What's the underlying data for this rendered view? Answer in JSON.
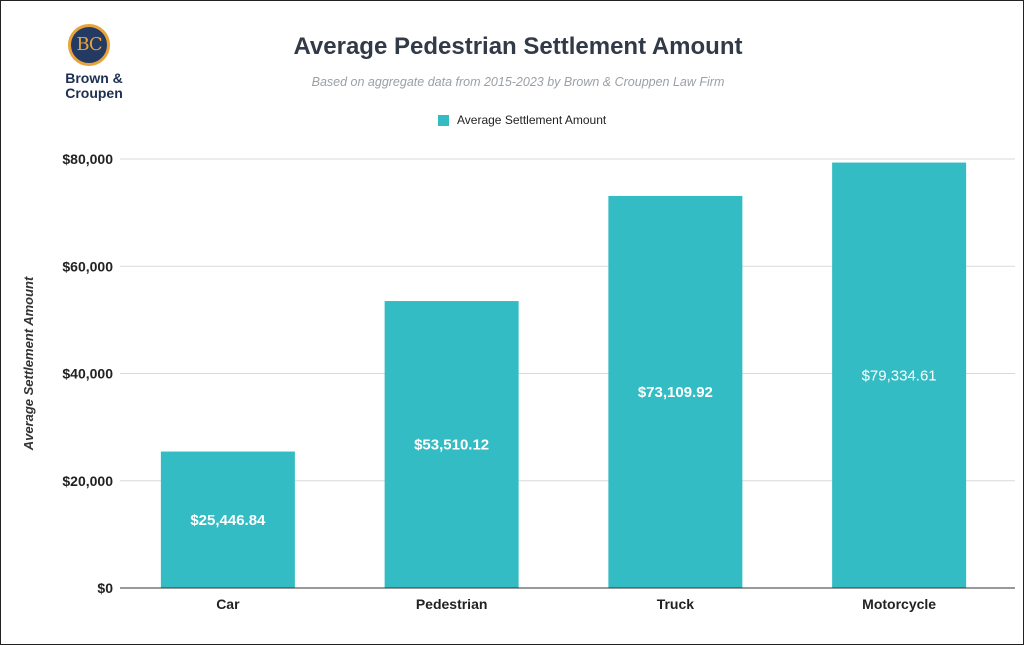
{
  "logo": {
    "monogram": "BC",
    "name_line1": "Brown &",
    "name_line2": "Croupen"
  },
  "colors": {
    "bar": "#33bcc3",
    "grid": "#d9d9d9",
    "axis": "#333333",
    "tick_text": "#222222"
  },
  "chart_data": {
    "type": "bar",
    "title": "Average Pedestrian Settlement Amount",
    "subtitle": "Based on aggregate data from 2015-2023 by Brown & Crouppen Law Firm",
    "legend": [
      "Average Settlement Amount"
    ],
    "legend_position": "top-center",
    "categories": [
      "Car",
      "Pedestrian",
      "Truck",
      "Motorcycle"
    ],
    "values": [
      25446.84,
      53510.12,
      73109.92,
      79334.61
    ],
    "data_labels": [
      "$25,446.84",
      "$53,510.12",
      "$73,109.92",
      "$79,334.61"
    ],
    "xlabel": "",
    "ylabel": "Average Settlement Amount",
    "ylim": [
      0,
      80000
    ],
    "yticks": [
      0,
      20000,
      40000,
      60000,
      80000
    ],
    "ytick_labels": [
      "$0",
      "$20,000",
      "$40,000",
      "$60,000",
      "$80,000"
    ],
    "grid": true
  }
}
